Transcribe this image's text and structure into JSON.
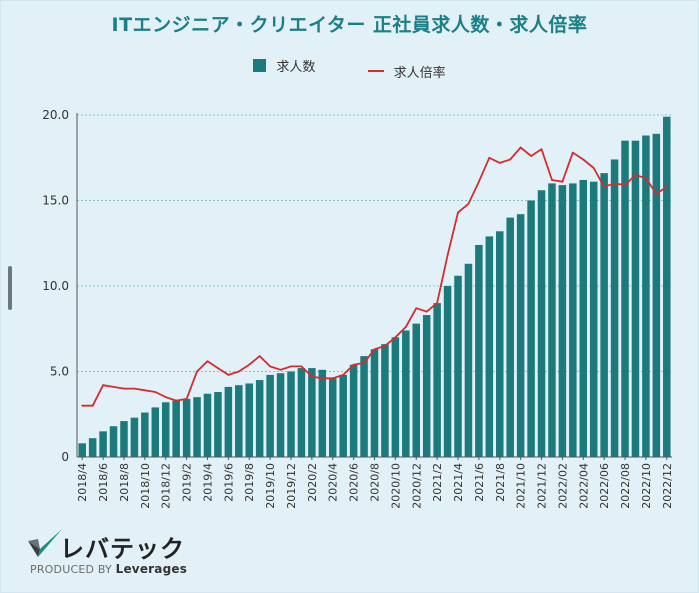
{
  "chart_data": {
    "type": "bar",
    "title": "ITエンジニア・クリエイター 正社員求人数・求人倍率",
    "ylim": [
      0,
      20
    ],
    "yticks": [
      "0",
      "5.0",
      "10.0",
      "15.0",
      "20.0"
    ],
    "grid": true,
    "legend_placement": "top-center",
    "x_tick_labels": [
      "2018/4",
      "2018/6",
      "2018/8",
      "2018/10",
      "2018/12",
      "2019/2",
      "2019/4",
      "2019/6",
      "2019/8",
      "2019/10",
      "2019/12",
      "2020/2",
      "2020/4",
      "2020/6",
      "2020/8",
      "2020/10",
      "2020/12",
      "2021/2",
      "2021/4",
      "2021/6",
      "2021/8",
      "2021/10",
      "2021/12",
      "2022/02",
      "2022/04",
      "2022/06",
      "2022/08",
      "2022/10",
      "2022/12"
    ],
    "months": [
      "2018/4",
      "2018/5",
      "2018/6",
      "2018/7",
      "2018/8",
      "2018/9",
      "2018/10",
      "2018/11",
      "2018/12",
      "2019/1",
      "2019/2",
      "2019/3",
      "2019/4",
      "2019/5",
      "2019/6",
      "2019/7",
      "2019/8",
      "2019/9",
      "2019/10",
      "2019/11",
      "2019/12",
      "2020/1",
      "2020/2",
      "2020/3",
      "2020/4",
      "2020/5",
      "2020/6",
      "2020/7",
      "2020/8",
      "2020/9",
      "2020/10",
      "2020/11",
      "2020/12",
      "2021/1",
      "2021/2",
      "2021/3",
      "2021/4",
      "2021/5",
      "2021/6",
      "2021/7",
      "2021/8",
      "2021/9",
      "2021/10",
      "2021/11",
      "2021/12",
      "2022/01",
      "2022/02",
      "2022/03",
      "2022/04",
      "2022/05",
      "2022/06",
      "2022/07",
      "2022/08",
      "2022/09",
      "2022/10",
      "2022/11",
      "2022/12"
    ],
    "series": [
      {
        "name": "求人数",
        "kind": "bar",
        "color": "#1d7a7c",
        "values": [
          0.8,
          1.1,
          1.5,
          1.8,
          2.1,
          2.3,
          2.6,
          2.9,
          3.2,
          3.3,
          3.4,
          3.5,
          3.7,
          3.8,
          4.1,
          4.2,
          4.3,
          4.5,
          4.8,
          4.9,
          5.0,
          5.2,
          5.2,
          5.1,
          4.6,
          4.8,
          5.4,
          5.9,
          6.3,
          6.6,
          7.0,
          7.4,
          7.8,
          8.3,
          9.0,
          10.0,
          10.6,
          11.3,
          12.4,
          12.9,
          13.2,
          14.0,
          14.2,
          15.0,
          15.6,
          16.0,
          15.9,
          16.0,
          16.2,
          16.1,
          16.6,
          17.4,
          18.5,
          18.5,
          18.8,
          18.9,
          19.9
        ]
      },
      {
        "name": "求人倍率",
        "kind": "line",
        "color": "#d62c2c",
        "values": [
          3.0,
          3.0,
          4.2,
          4.1,
          4.0,
          4.0,
          3.9,
          3.8,
          3.5,
          3.3,
          3.4,
          5.0,
          5.6,
          5.2,
          4.8,
          5.0,
          5.4,
          5.9,
          5.3,
          5.1,
          5.3,
          5.3,
          4.7,
          4.6,
          4.6,
          4.8,
          5.4,
          5.5,
          6.3,
          6.5,
          7.0,
          7.6,
          8.7,
          8.5,
          9.0,
          11.8,
          14.3,
          14.8,
          16.1,
          17.5,
          17.2,
          17.4,
          18.1,
          17.6,
          18.0,
          16.2,
          16.1,
          17.8,
          17.4,
          16.9,
          15.8,
          16.0,
          15.9,
          16.5,
          16.3,
          15.4,
          15.8
        ]
      }
    ]
  },
  "legend": {
    "bars_label": "求人数",
    "line_label": "求人倍率"
  },
  "brand": {
    "logo_text": "レバテック",
    "produced_by": "PRODUCED BY",
    "company": "Leverages"
  }
}
